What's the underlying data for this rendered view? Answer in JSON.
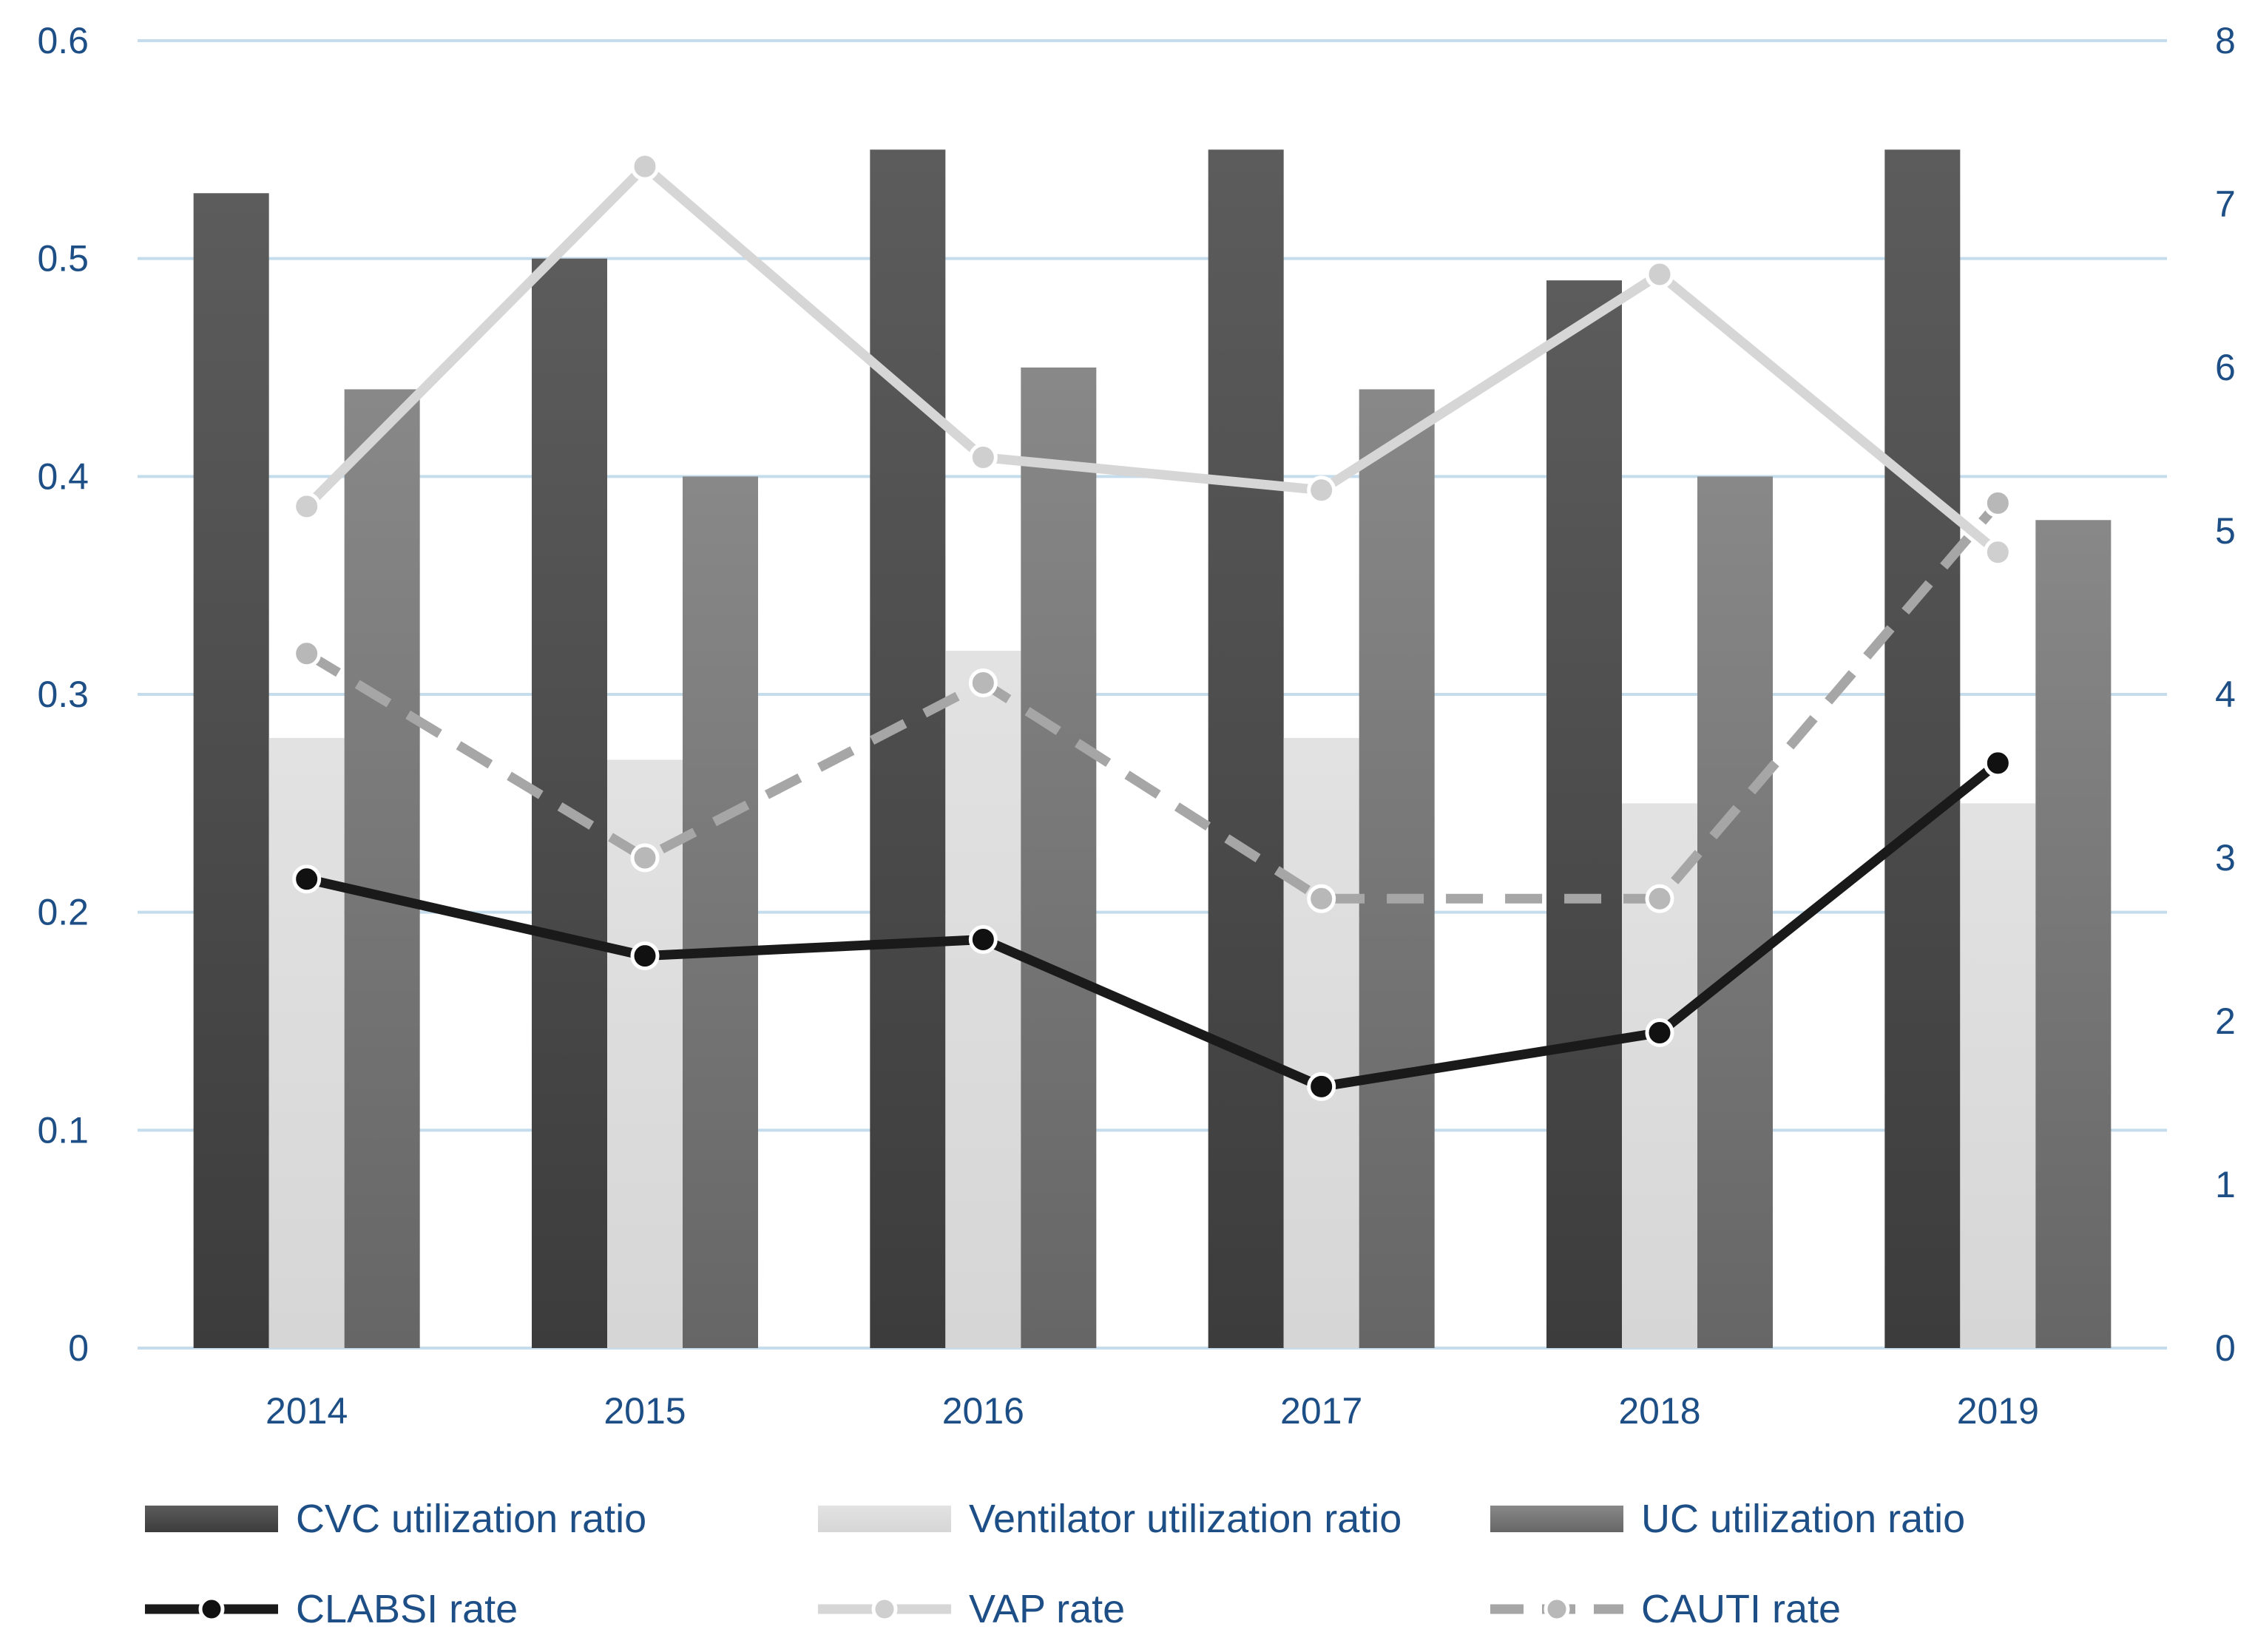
{
  "chart_data": {
    "type": "bar",
    "categories": [
      "2014",
      "2015",
      "2016",
      "2017",
      "2018",
      "2019"
    ],
    "y_left": {
      "lim": [
        0,
        0.6
      ],
      "ticks": [
        "0",
        "0.1",
        "0.2",
        "0.3",
        "0.4",
        "0.5",
        "0.6"
      ]
    },
    "y_right": {
      "lim": [
        0,
        8
      ],
      "ticks": [
        "0",
        "1",
        "2",
        "3",
        "4",
        "5",
        "6",
        "7",
        "8"
      ]
    },
    "grid": true,
    "legend_position": "bottom",
    "bar_series": [
      {
        "name": "CVC utilization ratio",
        "axis": "left",
        "color": "#4a4a4a",
        "values": [
          0.53,
          0.5,
          0.55,
          0.55,
          0.49,
          0.55
        ]
      },
      {
        "name": "Ventilator utilization ratio",
        "axis": "left",
        "color": "#d9d9d9",
        "values": [
          0.28,
          0.27,
          0.32,
          0.28,
          0.25,
          0.25
        ]
      },
      {
        "name": "UC utilization ratio",
        "axis": "left",
        "color": "#7a7a7a",
        "values": [
          0.44,
          0.4,
          0.45,
          0.44,
          0.4,
          0.38
        ]
      }
    ],
    "line_series": [
      {
        "name": "CLABSI rate",
        "axis": "right",
        "color": "#1a1a1a",
        "style": "solid",
        "values": [
          2.87,
          2.4,
          2.5,
          1.6,
          1.93,
          3.58
        ]
      },
      {
        "name": "VAP rate",
        "axis": "right",
        "color": "#d6d6d6",
        "style": "solid",
        "values": [
          5.15,
          7.23,
          5.45,
          5.25,
          6.57,
          4.87
        ]
      },
      {
        "name": "CAUTI rate",
        "axis": "right",
        "color": "#a6a6a6",
        "style": "dashed",
        "values": [
          4.25,
          3.0,
          4.07,
          2.75,
          2.75,
          5.17
        ]
      }
    ]
  }
}
